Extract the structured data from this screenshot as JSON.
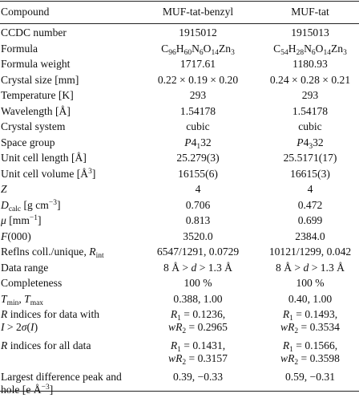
{
  "header": {
    "col_label": "Compound",
    "col_a": "MUF-tat-benzyl",
    "col_b": "MUF-tat"
  },
  "rows": [
    {
      "id": "ccdc",
      "label": "CCDC number",
      "a": "1915012",
      "b": "1915013"
    },
    {
      "id": "formula",
      "label": "Formula",
      "a": {
        "p1": "C",
        "s1": "96",
        "p2": "H",
        "s2": "60",
        "p3": "N",
        "s3": "6",
        "p4": "O",
        "s4": "14",
        "p5": "Zn",
        "s5": "3"
      },
      "b": {
        "p1": "C",
        "s1": "54",
        "p2": "H",
        "s2": "28",
        "p3": "N",
        "s3": "6",
        "p4": "O",
        "s4": "14",
        "p5": "Zn",
        "s5": "3"
      }
    },
    {
      "id": "fw",
      "label": "Formula weight",
      "a": "1717.61",
      "b": "1180.93"
    },
    {
      "id": "size",
      "label": "Crystal size [mm]",
      "a": "0.22 × 0.19 × 0.20",
      "b": "0.24 × 0.28 × 0.21"
    },
    {
      "id": "temp",
      "label": "Temperature [K]",
      "a": "293",
      "b": "293"
    },
    {
      "id": "wave",
      "label_pre": "Wavelength [",
      "label_unit": "Å",
      "label_post": "]",
      "a": "1.54178",
      "b": "1.54178"
    },
    {
      "id": "system",
      "label": "Crystal system",
      "a": "cubic",
      "b": "cubic"
    },
    {
      "id": "sg",
      "label": "Space group",
      "a_it": "P",
      "a_rest": "4",
      "a_sub": "1",
      "a_tail": "32",
      "b_it": "P",
      "b_rest": "4",
      "b_sub": "3",
      "b_tail": "32"
    },
    {
      "id": "cell_len",
      "label_pre": "Unit cell length [",
      "label_unit": "Å",
      "label_post": "]",
      "a": "25.279(3)",
      "b": "25.5171(17)"
    },
    {
      "id": "cell_vol",
      "label_pre": "Unit cell volume [",
      "label_unit": "Å",
      "label_sup": "3",
      "label_post": "]",
      "a": "16155(6)",
      "b": "16615(3)"
    },
    {
      "id": "z",
      "label_it": "Z",
      "a": "4",
      "b": "4"
    },
    {
      "id": "dcalc",
      "label_it": "D",
      "label_sub": "calc",
      "label_post": " [g cm",
      "label_sup": "−3",
      "label_end": "]",
      "a": "0.706",
      "b": "0.472"
    },
    {
      "id": "mu",
      "label_it": "μ",
      "label_post": " [mm",
      "label_sup": "−1",
      "label_end": "]",
      "a": "0.813",
      "b": "0.699"
    },
    {
      "id": "f000",
      "label_it": "F",
      "label_post": "(000)",
      "a": "3520.0",
      "b": "2384.0"
    },
    {
      "id": "refl",
      "label_pre": "Reflns coll./unique, ",
      "label_it": "R",
      "label_sub": "int",
      "a": "6547/1291, 0.0729",
      "b": "10121/1299, 0.042"
    },
    {
      "id": "range",
      "label": "Data range",
      "a": {
        "n1": "8 ",
        "u1": "Å",
        "gt": " > ",
        "d": "d",
        "gt2": " > 1.3 ",
        "u2": "Å"
      },
      "b": {
        "n1": "8 ",
        "u1": "Å",
        "gt": " > ",
        "d": "d",
        "gt2": " > 1.3 ",
        "u2": "Å"
      }
    },
    {
      "id": "complete",
      "label": "Completeness",
      "a": "100 %",
      "b": "100 %"
    },
    {
      "id": "tminmax",
      "l1": "T",
      "l1s": "min",
      "l2": ", ",
      "l3": "T",
      "l3s": "max",
      "a": "0.388, 1.00",
      "b": "0.40, 1.00"
    },
    {
      "id": "rind",
      "line1_pre": "",
      "line1_it": "R",
      "line1_post": " indices for data with",
      "line2_it": "I",
      "line2_mid": " > 2",
      "line2_sig": "σ",
      "line2_par": "(",
      "line2_it2": "I",
      "line2_end": ")",
      "a1": {
        "it": "R",
        "sub": "1",
        "val": " = 0.1236,"
      },
      "a2": {
        "it": "wR",
        "sub": "2",
        "val": " = 0.2965"
      },
      "b1": {
        "it": "R",
        "sub": "1",
        "val": " = 0.1493,"
      },
      "b2": {
        "it": "wR",
        "sub": "2",
        "val": " = 0.3534"
      }
    },
    {
      "id": "rall",
      "line1_it": "R",
      "line1_post": " indices for all data",
      "a1": {
        "it": "R",
        "sub": "1",
        "val": " = 0.1431,"
      },
      "a2": {
        "it": "wR",
        "sub": "2",
        "val": " = 0.3157"
      },
      "b1": {
        "it": "R",
        "sub": "1",
        "val": " = 0.1566,"
      },
      "b2": {
        "it": "wR",
        "sub": "2",
        "val": " = 0.3598"
      }
    },
    {
      "id": "peak",
      "line1": "Largest difference peak and",
      "line2_pre": "hole [e ",
      "line2_unit": "Å",
      "line2_sup": "−3",
      "line2_post": "]",
      "a": "0.39, −0.33",
      "b": "0.59, −0.31"
    }
  ]
}
